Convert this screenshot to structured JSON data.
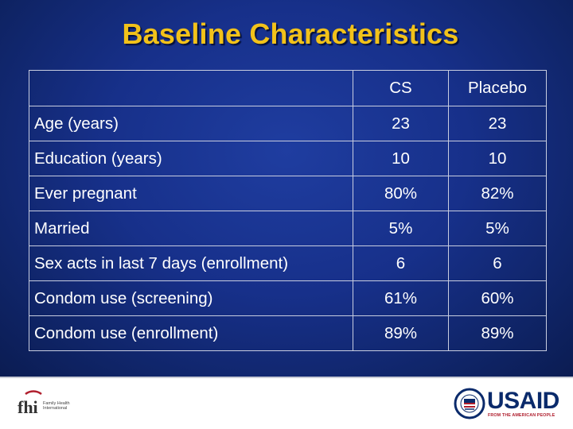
{
  "title": "Baseline Characteristics",
  "table": {
    "header": [
      "",
      "CS",
      "Placebo"
    ],
    "rows": [
      [
        "Age (years)",
        "23",
        "23"
      ],
      [
        "Education (years)",
        "10",
        "10"
      ],
      [
        "Ever pregnant",
        "80%",
        "82%"
      ],
      [
        "Married",
        "5%",
        "5%"
      ],
      [
        "Sex acts in last 7 days (enrollment)",
        "6",
        "6"
      ],
      [
        "Condom use (screening)",
        "61%",
        "60%"
      ],
      [
        "Condom use (enrollment)",
        "89%",
        "89%"
      ]
    ]
  },
  "footer": {
    "fhi_logo_text": "fhi",
    "fhi_name_lines": [
      "Family Health",
      "International"
    ],
    "usaid_word": "USAID",
    "usaid_tagline": "FROM THE AMERICAN PEOPLE"
  },
  "colors": {
    "background": "#17308a",
    "title": "#f2c21a",
    "table_text": "#ffffff",
    "usaid_blue": "#0a2a6b",
    "usaid_red": "#b01f2e"
  }
}
